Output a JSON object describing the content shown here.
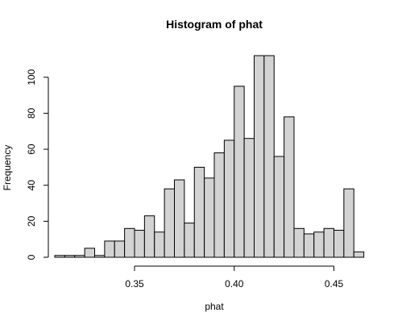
{
  "chart_data": {
    "type": "histogram",
    "title": "Histogram of phat",
    "xlabel": "phat",
    "ylabel": "Frequency",
    "bin_width": 0.005,
    "bin_start": 0.31,
    "frequencies": [
      1,
      1,
      1,
      5,
      1,
      9,
      9,
      16,
      15,
      23,
      14,
      38,
      43,
      19,
      50,
      44,
      58,
      65,
      95,
      66,
      112,
      112,
      56,
      78,
      16,
      13,
      14,
      16,
      15,
      38,
      3
    ],
    "x_ticks": [
      0.35,
      0.4,
      0.45
    ],
    "x_tick_labels": [
      "0.35",
      "0.40",
      "0.45"
    ],
    "y_ticks": [
      0,
      20,
      40,
      60,
      80,
      100
    ],
    "y_tick_labels": [
      "0",
      "20",
      "40",
      "60",
      "80",
      "100"
    ],
    "xlim": [
      0.31,
      0.47
    ],
    "ylim": [
      0,
      112
    ],
    "bar_fill": "#d3d3d3",
    "bar_stroke": "#000000",
    "grid": false
  }
}
